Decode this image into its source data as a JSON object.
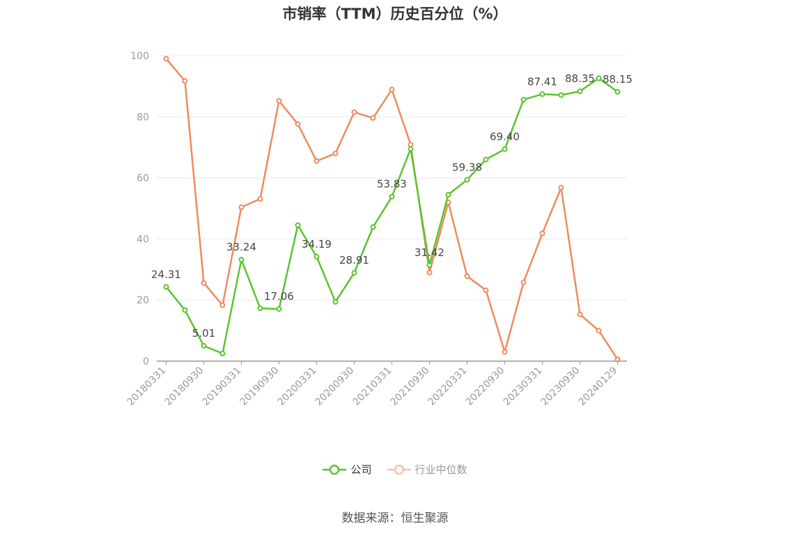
{
  "title": "市销率（TTM）历史百分位（%）",
  "source": "数据来源：恒生聚源",
  "colors": {
    "company": "#5ac42e",
    "industry": "#f08a5d",
    "axis": "#999999",
    "grid": "#e6e8ef"
  },
  "chart_data": {
    "type": "line",
    "ylim": [
      0,
      100
    ],
    "yticks": [
      0,
      20,
      40,
      60,
      80,
      100
    ],
    "x": [
      "20180331",
      "20180630",
      "20180930",
      "20181231",
      "20190331",
      "20190630",
      "20190930",
      "20191231",
      "20200331",
      "20200630",
      "20200930",
      "20201231",
      "20210331",
      "20210630",
      "20210930",
      "20211231",
      "20220331",
      "20220630",
      "20220930",
      "20221231",
      "20230331",
      "20230630",
      "20230930",
      "20231231",
      "20240129"
    ],
    "xtick_labels": [
      "20180331",
      "20180930",
      "20190331",
      "20190930",
      "20200331",
      "20200930",
      "20210331",
      "20210930",
      "20220331",
      "20220930",
      "20230331",
      "20230930",
      "20240129"
    ],
    "series": [
      {
        "name": "公司",
        "values": [
          24.31,
          16.7,
          5.01,
          2.5,
          33.24,
          17.3,
          17.06,
          44.5,
          34.19,
          19.4,
          28.91,
          43.9,
          53.83,
          69.5,
          31.42,
          54.5,
          59.38,
          66.0,
          69.4,
          85.6,
          87.41,
          87.1,
          88.35,
          92.6,
          88.15
        ],
        "labels": [
          "24.31",
          null,
          "5.01",
          null,
          "33.24",
          null,
          "17.06",
          null,
          "34.19",
          null,
          "28.91",
          null,
          "53.83",
          null,
          "31.42",
          null,
          "59.38",
          null,
          "69.40",
          null,
          "87.41",
          null,
          "88.35",
          null,
          "88.15"
        ]
      },
      {
        "name": "行业中位数",
        "values": [
          99.0,
          91.7,
          25.6,
          18.3,
          50.4,
          53.1,
          85.2,
          77.6,
          65.5,
          68.0,
          81.5,
          79.6,
          88.9,
          70.9,
          29.0,
          52.0,
          27.8,
          23.2,
          3.0,
          25.8,
          41.8,
          56.8,
          15.3,
          10.0,
          0.6
        ]
      }
    ]
  },
  "legend": [
    {
      "name": "公司",
      "state": "active"
    },
    {
      "name": "行业中位数",
      "state": "dim"
    }
  ]
}
